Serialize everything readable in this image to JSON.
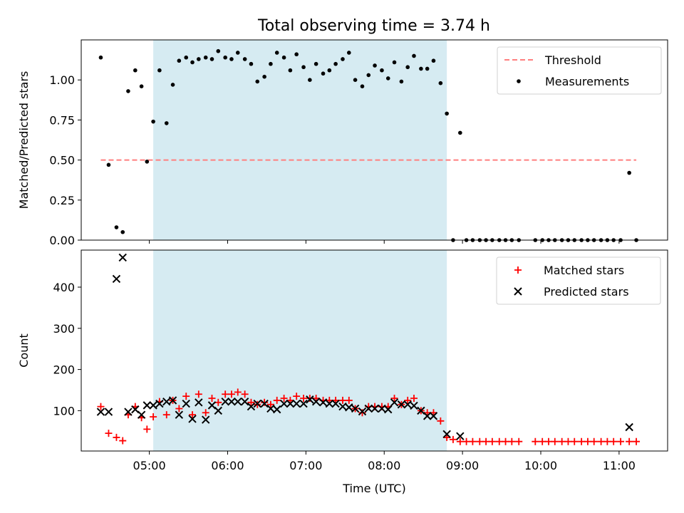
{
  "title": "Total observing time = 3.74 h",
  "colors": {
    "shade": "#add8e6",
    "threshold": "#ff7f7f",
    "measurements": "#000000",
    "matched": "#ff0000",
    "predicted": "#000000"
  },
  "chart_data": [
    {
      "type": "scatter",
      "ylabel": "Matched/Predicted stars",
      "xlim": [
        4.13,
        11.62
      ],
      "ylim": [
        0.0,
        1.25
      ],
      "yticks": [
        0.0,
        0.25,
        0.5,
        0.75,
        1.0
      ],
      "ytick_labels": [
        "0.00",
        "0.25",
        "0.50",
        "0.75",
        "1.00"
      ],
      "shaded_region": [
        5.05,
        8.8
      ],
      "legend": {
        "position": "top-right",
        "entries": [
          "Threshold",
          "Measurements"
        ]
      },
      "threshold": {
        "name": "Threshold",
        "x": [
          4.38,
          11.22
        ],
        "y": 0.5
      },
      "series": [
        {
          "name": "Measurements",
          "x": [
            4.38,
            4.48,
            4.58,
            4.66,
            4.73,
            4.82,
            4.9,
            4.97,
            5.05,
            5.13,
            5.22,
            5.3,
            5.38,
            5.47,
            5.55,
            5.63,
            5.72,
            5.8,
            5.88,
            5.97,
            6.05,
            6.13,
            6.22,
            6.3,
            6.38,
            6.47,
            6.55,
            6.63,
            6.72,
            6.8,
            6.88,
            6.97,
            7.05,
            7.13,
            7.22,
            7.3,
            7.38,
            7.47,
            7.55,
            7.63,
            7.72,
            7.8,
            7.88,
            7.97,
            8.05,
            8.13,
            8.22,
            8.3,
            8.38,
            8.47,
            8.55,
            8.63,
            8.72,
            8.8,
            8.88,
            8.97,
            9.05,
            9.13,
            9.22,
            9.3,
            9.38,
            9.47,
            9.55,
            9.63,
            9.72,
            9.93,
            10.02,
            10.1,
            10.18,
            10.27,
            10.35,
            10.43,
            10.52,
            10.6,
            10.68,
            10.77,
            10.85,
            10.93,
            11.02,
            11.13,
            11.22
          ],
          "y": [
            1.14,
            0.47,
            0.08,
            0.05,
            0.93,
            1.06,
            0.96,
            0.49,
            0.74,
            1.06,
            0.73,
            0.97,
            1.12,
            1.14,
            1.11,
            1.13,
            1.14,
            1.13,
            1.18,
            1.14,
            1.13,
            1.17,
            1.13,
            1.1,
            0.99,
            1.02,
            1.1,
            1.17,
            1.14,
            1.06,
            1.16,
            1.08,
            1.0,
            1.1,
            1.04,
            1.06,
            1.1,
            1.13,
            1.17,
            1.0,
            0.96,
            1.03,
            1.09,
            1.06,
            1.01,
            1.11,
            0.99,
            1.08,
            1.15,
            1.07,
            1.07,
            1.12,
            0.98,
            0.79,
            0.0,
            0.67,
            0.0,
            0.0,
            0.0,
            0.0,
            0.0,
            0.0,
            0.0,
            0.0,
            0.0,
            0.0,
            0.0,
            0.0,
            0.0,
            0.0,
            0.0,
            0.0,
            0.0,
            0.0,
            0.0,
            0.0,
            0.0,
            0.0,
            0.0,
            0.42,
            0.0
          ]
        }
      ]
    },
    {
      "type": "scatter",
      "xlabel": "Time (UTC)",
      "ylabel": "Count",
      "xlim": [
        4.13,
        11.62
      ],
      "ylim": [
        2,
        490
      ],
      "xticks": [
        5,
        6,
        7,
        8,
        9,
        10,
        11
      ],
      "xtick_labels": [
        "05:00",
        "06:00",
        "07:00",
        "08:00",
        "09:00",
        "10:00",
        "11:00"
      ],
      "yticks": [
        100,
        200,
        300,
        400
      ],
      "ytick_labels": [
        "100",
        "200",
        "300",
        "400"
      ],
      "shaded_region": [
        5.05,
        8.8
      ],
      "legend": {
        "position": "top-right",
        "entries": [
          "Matched stars",
          "Predicted stars"
        ]
      },
      "series": [
        {
          "name": "Matched stars",
          "x": [
            4.38,
            4.48,
            4.58,
            4.66,
            4.73,
            4.82,
            4.9,
            4.97,
            5.05,
            5.13,
            5.22,
            5.3,
            5.38,
            5.47,
            5.55,
            5.63,
            5.72,
            5.8,
            5.88,
            5.97,
            6.05,
            6.13,
            6.22,
            6.3,
            6.38,
            6.47,
            6.55,
            6.63,
            6.72,
            6.8,
            6.88,
            6.97,
            7.05,
            7.13,
            7.22,
            7.3,
            7.38,
            7.47,
            7.55,
            7.63,
            7.72,
            7.8,
            7.88,
            7.97,
            8.05,
            8.13,
            8.22,
            8.3,
            8.38,
            8.47,
            8.55,
            8.63,
            8.72,
            8.8,
            8.88,
            8.97,
            9.05,
            9.13,
            9.22,
            9.3,
            9.38,
            9.47,
            9.55,
            9.63,
            9.72,
            9.93,
            10.02,
            10.1,
            10.18,
            10.27,
            10.35,
            10.43,
            10.52,
            10.6,
            10.68,
            10.77,
            10.85,
            10.93,
            11.02,
            11.13,
            11.22
          ],
          "y": [
            110,
            45,
            35,
            27,
            90,
            110,
            83,
            55,
            85,
            122,
            90,
            125,
            105,
            135,
            90,
            140,
            95,
            130,
            120,
            140,
            140,
            145,
            140,
            120,
            115,
            120,
            115,
            125,
            130,
            125,
            135,
            130,
            130,
            130,
            125,
            125,
            125,
            125,
            125,
            105,
            95,
            110,
            110,
            110,
            110,
            130,
            115,
            125,
            130,
            100,
            95,
            95,
            75,
            35,
            30,
            25,
            25,
            25,
            25,
            25,
            25,
            25,
            25,
            25,
            25,
            25,
            25,
            25,
            25,
            25,
            25,
            25,
            25,
            25,
            25,
            25,
            25,
            25,
            25,
            25,
            25
          ]
        },
        {
          "name": "Predicted stars",
          "x": [
            4.38,
            4.48,
            4.58,
            4.66,
            4.73,
            4.82,
            4.9,
            4.97,
            5.05,
            5.13,
            5.22,
            5.3,
            5.38,
            5.47,
            5.55,
            5.63,
            5.72,
            5.8,
            5.88,
            5.97,
            6.05,
            6.13,
            6.22,
            6.3,
            6.38,
            6.47,
            6.55,
            6.63,
            6.72,
            6.8,
            6.88,
            6.97,
            7.05,
            7.13,
            7.22,
            7.3,
            7.38,
            7.47,
            7.55,
            7.63,
            7.72,
            7.8,
            7.88,
            7.97,
            8.05,
            8.13,
            8.22,
            8.3,
            8.38,
            8.47,
            8.55,
            8.63,
            8.8,
            8.97,
            11.13
          ],
          "y": [
            97,
            97,
            420,
            472,
            97,
            103,
            90,
            113,
            113,
            117,
            122,
            125,
            90,
            117,
            80,
            120,
            78,
            113,
            100,
            122,
            122,
            122,
            122,
            110,
            117,
            117,
            105,
            103,
            117,
            117,
            117,
            117,
            127,
            122,
            120,
            117,
            117,
            110,
            108,
            105,
            98,
            105,
            105,
            105,
            103,
            120,
            115,
            115,
            112,
            100,
            87,
            87,
            43,
            38,
            60
          ]
        }
      ]
    }
  ]
}
